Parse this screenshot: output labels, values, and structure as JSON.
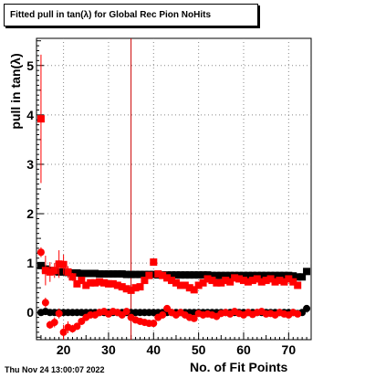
{
  "title": "Fitted pull in tan(λ) for Global Rec Pion NoHits",
  "footer": "Thu Nov 24 13:00:07 2022",
  "chart_data": {
    "type": "scatter",
    "xlabel": "No. of Fit Points",
    "ylabel": "pull in tan(λ)",
    "xlim": [
      14,
      75
    ],
    "ylim": [
      -0.55,
      5.55
    ],
    "xticks": [
      20,
      30,
      40,
      50,
      60,
      70
    ],
    "yticks": [
      0,
      1,
      2,
      3,
      4,
      5
    ],
    "grid": true,
    "marker_line": {
      "x": 35,
      "color": "#cc0000"
    },
    "series": [
      {
        "color": "#000000",
        "marker": "square",
        "x": [
          15,
          16,
          17,
          18,
          19,
          20,
          21,
          22,
          23,
          24,
          25,
          26,
          27,
          28,
          29,
          30,
          31,
          32,
          33,
          34,
          35,
          36,
          37,
          38,
          39,
          40,
          41,
          42,
          43,
          44,
          45,
          46,
          47,
          48,
          49,
          50,
          51,
          52,
          53,
          54,
          55,
          56,
          57,
          58,
          59,
          60,
          61,
          62,
          63,
          64,
          65,
          66,
          67,
          68,
          69,
          70,
          71,
          72,
          73,
          74
        ],
        "y": [
          0.95,
          0.88,
          0.85,
          0.84,
          0.82,
          0.82,
          0.81,
          0.8,
          0.8,
          0.79,
          0.79,
          0.79,
          0.79,
          0.78,
          0.78,
          0.78,
          0.78,
          0.78,
          0.78,
          0.77,
          0.77,
          0.77,
          0.77,
          0.77,
          0.77,
          0.77,
          0.76,
          0.76,
          0.76,
          0.76,
          0.76,
          0.76,
          0.76,
          0.76,
          0.76,
          0.76,
          0.76,
          0.76,
          0.75,
          0.75,
          0.75,
          0.75,
          0.75,
          0.75,
          0.75,
          0.75,
          0.75,
          0.75,
          0.75,
          0.75,
          0.75,
          0.75,
          0.75,
          0.75,
          0.75,
          0.75,
          0.74,
          0.72,
          0.72,
          0.83
        ]
      },
      {
        "color": "#000000",
        "marker": "circle",
        "x": [
          15,
          16,
          17,
          18,
          19,
          20,
          21,
          22,
          23,
          24,
          25,
          26,
          27,
          28,
          29,
          30,
          31,
          32,
          33,
          34,
          35,
          36,
          37,
          38,
          39,
          40,
          41,
          42,
          43,
          44,
          45,
          46,
          47,
          48,
          49,
          50,
          51,
          52,
          53,
          54,
          55,
          56,
          57,
          58,
          59,
          60,
          61,
          62,
          63,
          64,
          65,
          66,
          67,
          68,
          69,
          70,
          71,
          72,
          73,
          74
        ],
        "y": [
          0.0,
          0.02,
          0.0,
          0.0,
          0.0,
          0.0,
          0.0,
          0.0,
          0.0,
          0.0,
          0.0,
          0.0,
          0.0,
          0.0,
          0.0,
          0.0,
          0.0,
          0.0,
          0.0,
          0.0,
          0.0,
          0.0,
          0.0,
          0.0,
          0.0,
          0.0,
          0.0,
          0.0,
          0.0,
          0.0,
          0.0,
          0.0,
          0.0,
          0.0,
          0.0,
          0.0,
          0.0,
          0.0,
          0.0,
          0.0,
          0.0,
          0.0,
          0.0,
          0.0,
          0.0,
          0.0,
          0.0,
          0.0,
          0.0,
          0.0,
          0.0,
          0.0,
          0.0,
          0.0,
          0.0,
          0.0,
          0.0,
          -0.02,
          0.0,
          0.08
        ]
      },
      {
        "color": "#ff0000",
        "marker": "square",
        "x": [
          15,
          16,
          17,
          18,
          19,
          20,
          21,
          22,
          23,
          24,
          25,
          26,
          27,
          28,
          29,
          30,
          31,
          32,
          33,
          34,
          35,
          36,
          37,
          38,
          39,
          40,
          41,
          42,
          43,
          44,
          45,
          46,
          47,
          48,
          49,
          50,
          51,
          52,
          53,
          54,
          55,
          56,
          57,
          58,
          59,
          60,
          61,
          62,
          63,
          64,
          65,
          66,
          67,
          68,
          69,
          70,
          71,
          72
        ],
        "y": [
          3.92,
          0.85,
          0.82,
          0.85,
          0.98,
          0.97,
          0.82,
          0.72,
          0.58,
          0.65,
          0.55,
          0.6,
          0.6,
          0.62,
          0.6,
          0.58,
          0.58,
          0.55,
          0.52,
          0.48,
          0.45,
          0.5,
          0.52,
          0.65,
          0.75,
          1.02,
          0.78,
          0.75,
          0.7,
          0.65,
          0.6,
          0.55,
          0.55,
          0.5,
          0.46,
          0.55,
          0.6,
          0.68,
          0.65,
          0.6,
          0.6,
          0.65,
          0.62,
          0.7,
          0.68,
          0.65,
          0.62,
          0.65,
          0.68,
          0.62,
          0.65,
          0.68,
          0.62,
          0.65,
          0.62,
          0.68,
          0.62,
          0.55
        ],
        "err": [
          1.3,
          0.3,
          0.2,
          0.15,
          0.28,
          0.2,
          0.12,
          0.08,
          0.05,
          0.05,
          0.05,
          0.04,
          0.04,
          0.04,
          0.04,
          0.04,
          0.04,
          0.04,
          0.04,
          0.04,
          0.04,
          0.04,
          0.04,
          0.04,
          0.05,
          0.06,
          0.05,
          0.05,
          0.05,
          0.05,
          0.04,
          0.04,
          0.04,
          0.04,
          0.04,
          0.04,
          0.04,
          0.04,
          0.04,
          0.04,
          0.04,
          0.04,
          0.04,
          0.04,
          0.04,
          0.04,
          0.04,
          0.04,
          0.04,
          0.04,
          0.04,
          0.04,
          0.04,
          0.04,
          0.04,
          0.04,
          0.04,
          0.05
        ]
      },
      {
        "color": "#ff0000",
        "marker": "circle",
        "x": [
          15,
          16,
          17,
          18,
          19,
          20,
          21,
          22,
          23,
          24,
          25,
          26,
          27,
          28,
          29,
          30,
          31,
          32,
          33,
          34,
          35,
          36,
          37,
          38,
          39,
          40,
          41,
          42,
          43,
          44,
          45,
          46,
          47,
          48,
          49,
          50,
          51,
          52,
          53,
          54,
          55,
          56,
          57,
          58,
          59,
          60,
          61,
          62,
          63,
          64,
          65,
          66,
          67,
          68,
          69,
          70,
          71,
          72
        ],
        "y": [
          1.22,
          0.2,
          -0.25,
          -0.2,
          -0.02,
          -0.4,
          -0.3,
          -0.33,
          -0.28,
          -0.18,
          -0.1,
          -0.05,
          -0.05,
          0.0,
          0.02,
          -0.03,
          0.02,
          0.0,
          -0.05,
          0.02,
          -0.1,
          -0.15,
          -0.18,
          -0.2,
          -0.22,
          -0.22,
          -0.1,
          -0.05,
          0.08,
          0.0,
          -0.05,
          0.0,
          -0.05,
          -0.1,
          -0.12,
          -0.02,
          -0.05,
          -0.03,
          -0.05,
          -0.08,
          -0.02,
          0.0,
          -0.03,
          0.02,
          -0.02,
          -0.05,
          0.0,
          -0.04,
          0.0,
          0.02,
          -0.03,
          -0.02,
          -0.05,
          0.0,
          -0.03,
          -0.05,
          0.0,
          -0.03
        ],
        "err": [
          0.1,
          0.1,
          0.08,
          0.1,
          0.1,
          0.15,
          0.12,
          0.08,
          0.06,
          0.05,
          0.05,
          0.04,
          0.04,
          0.04,
          0.04,
          0.04,
          0.04,
          0.04,
          0.04,
          0.04,
          0.04,
          0.04,
          0.04,
          0.04,
          0.05,
          0.06,
          0.05,
          0.05,
          0.05,
          0.05,
          0.04,
          0.04,
          0.04,
          0.04,
          0.04,
          0.04,
          0.04,
          0.04,
          0.04,
          0.04,
          0.04,
          0.04,
          0.04,
          0.04,
          0.04,
          0.04,
          0.04,
          0.04,
          0.04,
          0.04,
          0.04,
          0.04,
          0.04,
          0.04,
          0.04,
          0.04,
          0.04,
          0.05
        ]
      }
    ]
  }
}
